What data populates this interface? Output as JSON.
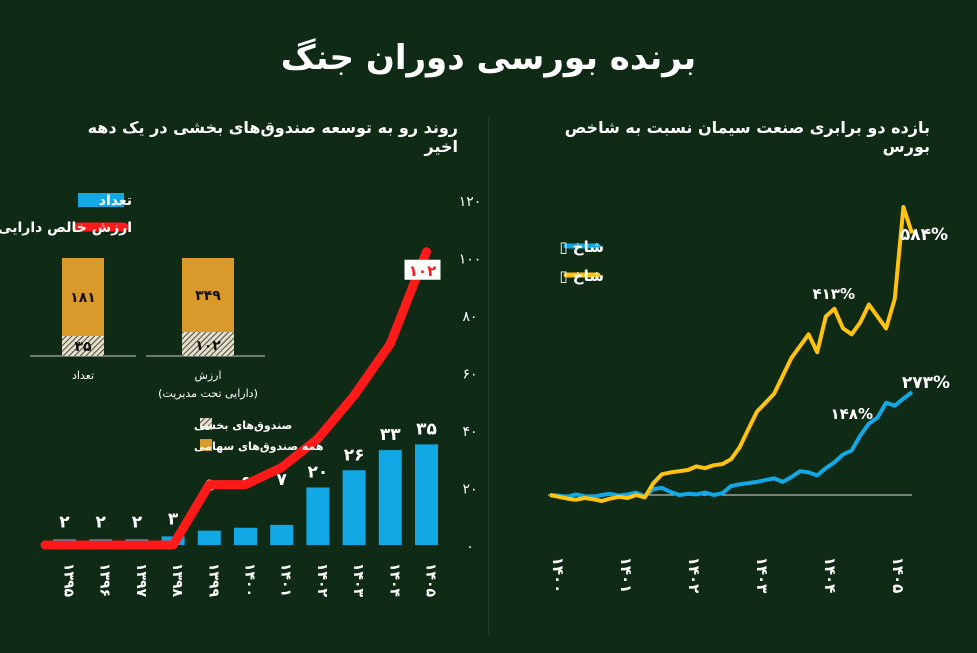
{
  "title": "برنده بورسی دوران جنگ",
  "colors": {
    "background": "#0f2a15",
    "bar": "#12a8e6",
    "line": "#ff1a1a",
    "gold": "#d99a2b",
    "blue_series": "#12a8e6",
    "gold_series": "#ffc20e"
  },
  "chart_data": [
    {
      "type": "bar",
      "title": "روند رو به توسعه صندوق‌های بخشی در یک دهه اخیر",
      "categories": [
        "۱۳۹۵",
        "۱۳۹۶",
        "۱۳۹۷",
        "۱۳۹۸",
        "۱۳۹۹",
        "۱۴۰۰",
        "۱۴۰۱",
        "۱۴۰۲",
        "۱۴۰۳",
        "۱۴۰۴",
        "۱۴۰۵"
      ],
      "ylim": [
        0,
        120
      ],
      "yticks": [
        "۰",
        "۲۰",
        "۴۰",
        "۶۰",
        "۸۰",
        "۱۰۰",
        "۱۲۰"
      ],
      "ytick_values": [
        0,
        20,
        40,
        60,
        80,
        100,
        120
      ],
      "legend": [
        "تعداد",
        "ارزش خالص دارایی (همت)"
      ],
      "series": [
        {
          "name": "تعداد",
          "values": [
            2,
            2,
            2,
            3,
            5,
            6,
            7,
            20,
            26,
            33,
            35
          ],
          "labels": [
            "۲",
            "۲",
            "۲",
            "۳",
            "۵",
            "۶",
            "۷",
            "۲۰",
            "۲۶",
            "۳۳",
            "۳۵"
          ]
        },
        {
          "name": "ارزش خالص دارایی (همت)",
          "values": [
            0,
            0,
            0,
            0,
            21,
            21,
            27,
            37,
            52,
            70,
            102
          ],
          "end_label": "۱۰۲"
        }
      ],
      "inset": {
        "legend": [
          "صندوق‌های بخشی",
          "همه صندوق‌های سهامی"
        ],
        "bars": [
          {
            "label": "تعداد",
            "sector": "۳۵",
            "total": "۱۸۱"
          },
          {
            "label": "ارزش",
            "sublabel": "(دارایی تحت مدیریت)",
            "sector": "۱۰۲",
            "total": "۳۴۹"
          }
        ]
      }
    },
    {
      "type": "line",
      "title": "بازده دو برابری صنعت سیمان نسبت به شاخص بورس",
      "x_ticks": [
        "۱۴۰۰",
        "۱۴۰۱",
        "۱۴۰۲",
        "۱۴۰۳",
        "۱۴۰۴",
        "۱۴۰۵"
      ],
      "legend": [
        "شاخ ▯",
        "شاخ ▯"
      ],
      "annotations": [
        "۵۸۴%",
        "۴۱۳%",
        "۲۷۳%",
        "۱۴۸%"
      ],
      "series": [
        {
          "name": "شاخ ▯",
          "color": "blue",
          "values": [
            100,
            99,
            97,
            101,
            98,
            97,
            100,
            102,
            99,
            101,
            104,
            98,
            110,
            112,
            105,
            100,
            102,
            101,
            104,
            100,
            103,
            115,
            118,
            120,
            122,
            125,
            128,
            122,
            130,
            140,
            138,
            133,
            145,
            155,
            168,
            175,
            200,
            220,
            230,
            255,
            250,
            262,
            273
          ]
        },
        {
          "name": "شاخ ▯",
          "color": "gold",
          "values": [
            100,
            97,
            94,
            92,
            95,
            93,
            90,
            94,
            97,
            95,
            100,
            96,
            120,
            135,
            138,
            140,
            142,
            148,
            145,
            150,
            152,
            160,
            180,
            210,
            240,
            255,
            270,
            300,
            330,
            350,
            370,
            340,
            400,
            413,
            380,
            370,
            390,
            420,
            400,
            380,
            430,
            584,
            540
          ]
        }
      ]
    }
  ]
}
